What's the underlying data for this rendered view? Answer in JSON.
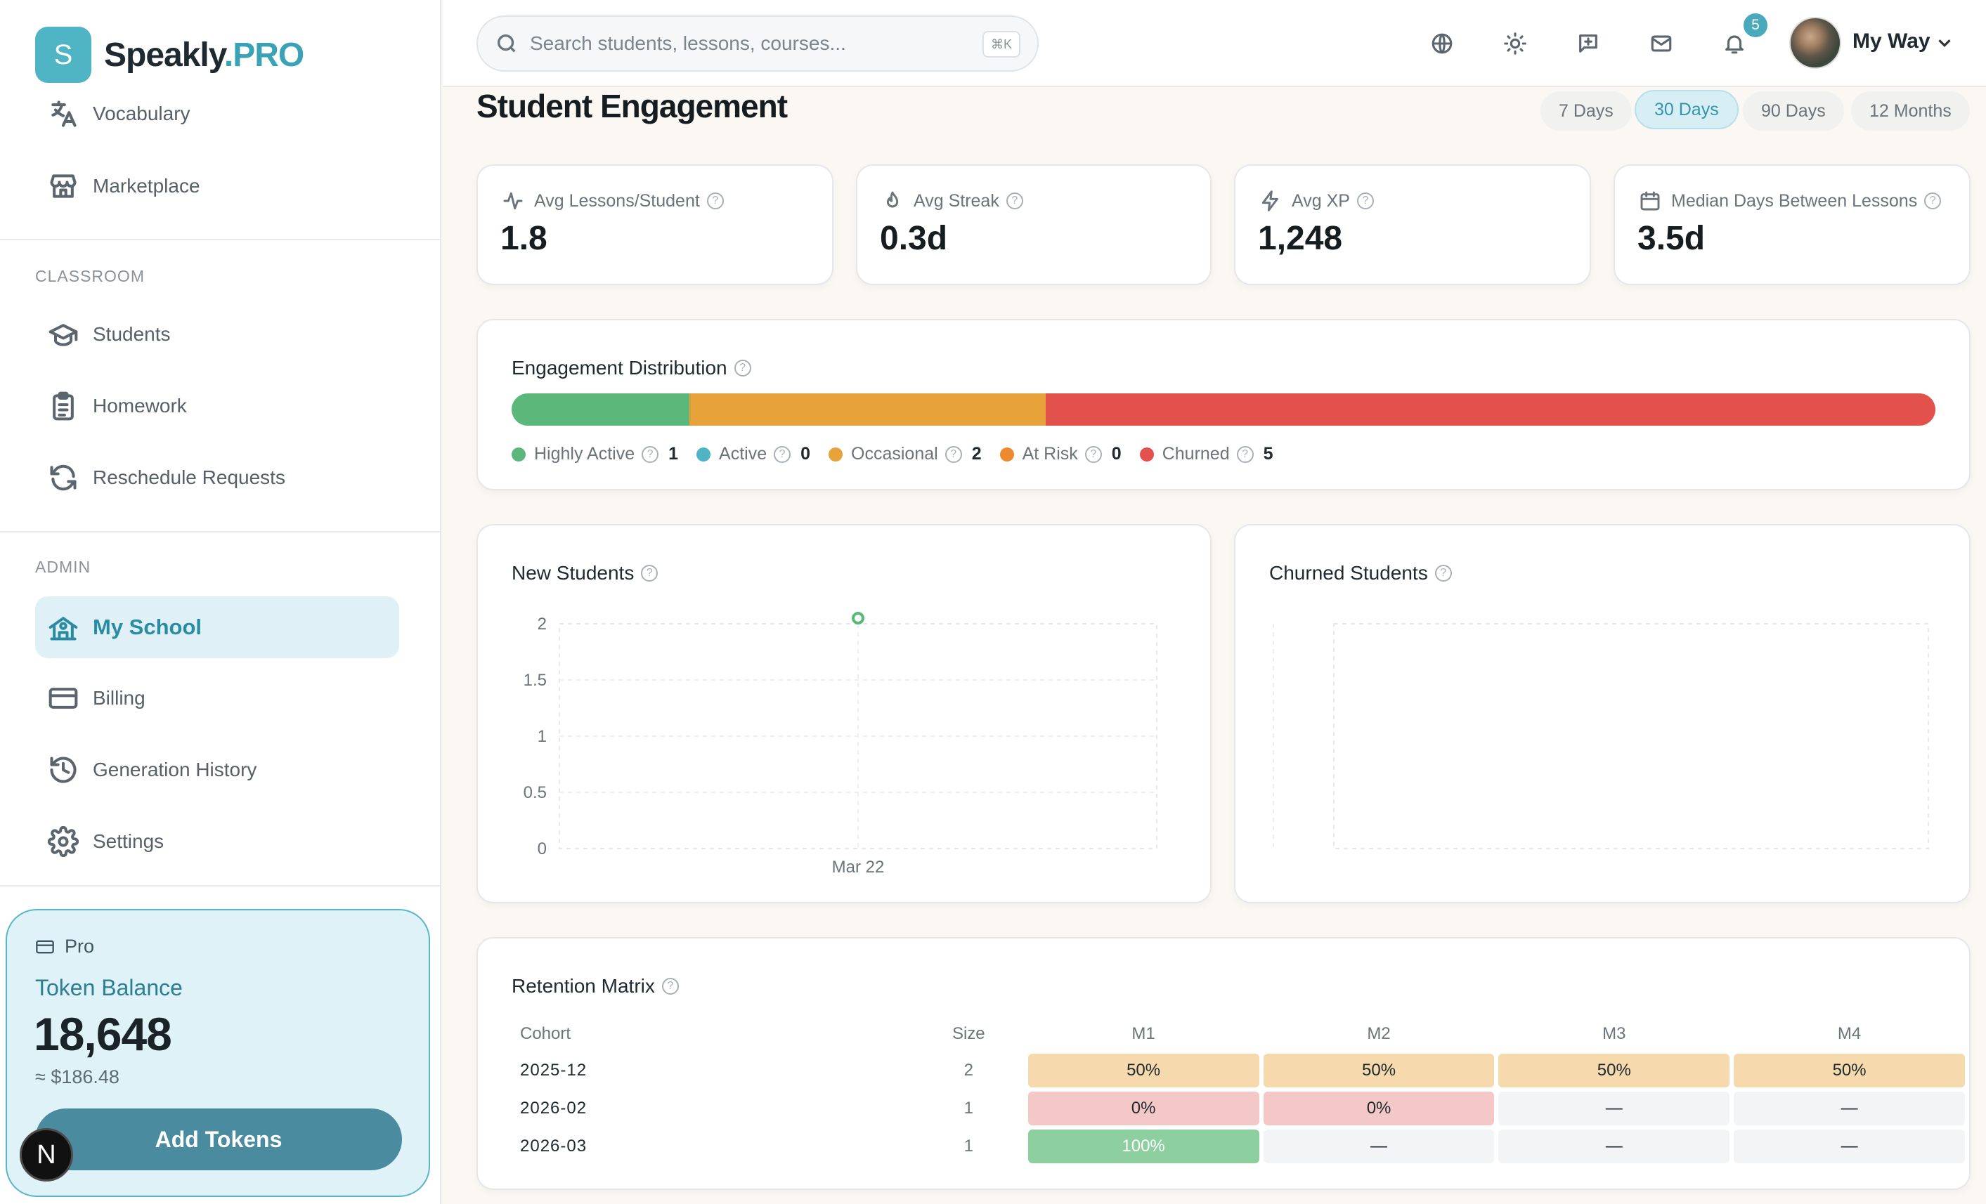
{
  "app": {
    "logo_letter": "S",
    "name": "Speakly",
    "name_suffix": ".PRO"
  },
  "sidebar": {
    "top_items": [
      {
        "label": "Vocabulary",
        "icon": "translate-icon"
      },
      {
        "label": "Marketplace",
        "icon": "store-icon"
      }
    ],
    "classroom_label": "CLASSROOM",
    "classroom_items": [
      {
        "label": "Students",
        "icon": "graduation-cap-icon"
      },
      {
        "label": "Homework",
        "icon": "clipboard-list-icon"
      },
      {
        "label": "Reschedule Requests",
        "icon": "refresh-icon"
      }
    ],
    "admin_label": "ADMIN",
    "admin_items": [
      {
        "label": "My School",
        "icon": "school-icon",
        "active": true
      },
      {
        "label": "Billing",
        "icon": "credit-card-icon"
      },
      {
        "label": "Generation History",
        "icon": "history-icon"
      },
      {
        "label": "Settings",
        "icon": "gear-icon"
      }
    ],
    "token_card": {
      "plan": "Pro",
      "title": "Token Balance",
      "balance": "18,648",
      "usd": "≈ $186.48",
      "button": "Add Tokens"
    },
    "corner_badge": "N"
  },
  "topbar": {
    "search_placeholder": "Search students, lessons, courses...",
    "search_shortcut": "⌘K",
    "icons": [
      "globe-icon",
      "sun-icon",
      "message-plus-icon",
      "mail-icon",
      "bell-icon"
    ],
    "notification_count": "5",
    "user_name": "My Way"
  },
  "page": {
    "title": "Student Engagement",
    "ranges": [
      {
        "label": "7 Days"
      },
      {
        "label": "30 Days",
        "active": true
      },
      {
        "label": "90 Days"
      },
      {
        "label": "12 Months"
      }
    ]
  },
  "stats": [
    {
      "label": "Avg Lessons/Student",
      "value": "1.8",
      "icon": "activity-icon"
    },
    {
      "label": "Avg Streak",
      "value": "0.3d",
      "icon": "flame-icon"
    },
    {
      "label": "Avg XP",
      "value": "1,248",
      "icon": "zap-icon"
    },
    {
      "label": "Median Days Between Lessons",
      "value": "3.5d",
      "icon": "calendar-icon"
    }
  ],
  "distribution": {
    "title": "Engagement Distribution",
    "segments": [
      {
        "label": "Highly Active",
        "count": 1,
        "color": "#5cb87a"
      },
      {
        "label": "Active",
        "count": 0,
        "color": "#4fb4c4"
      },
      {
        "label": "Occasional",
        "count": 2,
        "color": "#e8a23a"
      },
      {
        "label": "At Risk",
        "count": 0,
        "color": "#ee8a2e"
      },
      {
        "label": "Churned",
        "count": 5,
        "color": "#e2514c"
      }
    ]
  },
  "new_students": {
    "title": "New Students"
  },
  "churned_students": {
    "title": "Churned Students"
  },
  "chart_data": [
    {
      "type": "scatter",
      "title": "New Students",
      "categories": [
        "Mar 22"
      ],
      "series": [
        {
          "values": [
            2
          ]
        }
      ],
      "ylim": [
        0,
        2
      ],
      "yticks": [
        "0",
        "0.5",
        "1",
        "1.5",
        "2"
      ],
      "grid": true
    },
    {
      "type": "line",
      "title": "Churned Students",
      "categories": [],
      "series": [],
      "grid": true
    }
  ],
  "retention": {
    "title": "Retention Matrix",
    "headers": [
      "Cohort",
      "Size",
      "M1",
      "M2",
      "M3",
      "M4"
    ],
    "rows": [
      {
        "cohort": "2025-12",
        "size": "2",
        "cells": [
          "50%",
          "50%",
          "50%",
          "50%"
        ]
      },
      {
        "cohort": "2026-02",
        "size": "1",
        "cells": [
          "0%",
          "0%",
          "—",
          "—"
        ]
      },
      {
        "cohort": "2026-03",
        "size": "1",
        "cells": [
          "100%",
          "—",
          "—",
          "—"
        ]
      }
    ]
  }
}
